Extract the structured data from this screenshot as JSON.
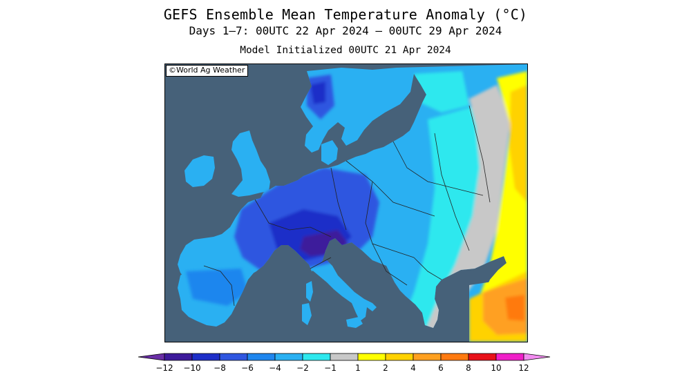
{
  "title": "GEFS Ensemble Mean Temperature Anomaly (°C)",
  "subtitle": "Days 1–7: 00UTC 22 Apr 2024 – 00UTC 29 Apr 2024",
  "init": "Model Initialized 00UTC 21 Apr 2024",
  "credit": "©World Ag Weather",
  "map": {
    "region": "Europe",
    "ocean_color": "#466179",
    "border_color": "#222222"
  },
  "colorbar": {
    "bins": [
      {
        "color": "#6a2ea6"
      },
      {
        "color": "#3d1a9b"
      },
      {
        "color": "#1e2ec8"
      },
      {
        "color": "#2f56e0"
      },
      {
        "color": "#1f86ee"
      },
      {
        "color": "#2ab0f2"
      },
      {
        "color": "#2ee8ee"
      },
      {
        "color": "#c8c8c8"
      },
      {
        "color": "#ffff00"
      },
      {
        "color": "#ffd200"
      },
      {
        "color": "#ffa020"
      },
      {
        "color": "#ff7a10"
      },
      {
        "color": "#e8121a"
      },
      {
        "color": "#f020c8"
      },
      {
        "color": "#f28cf0"
      }
    ],
    "labels": [
      "-12",
      "-10",
      "-8",
      "-6",
      "-4",
      "-2",
      "-1",
      "1",
      "2",
      "4",
      "6",
      "8",
      "10",
      "12"
    ]
  }
}
